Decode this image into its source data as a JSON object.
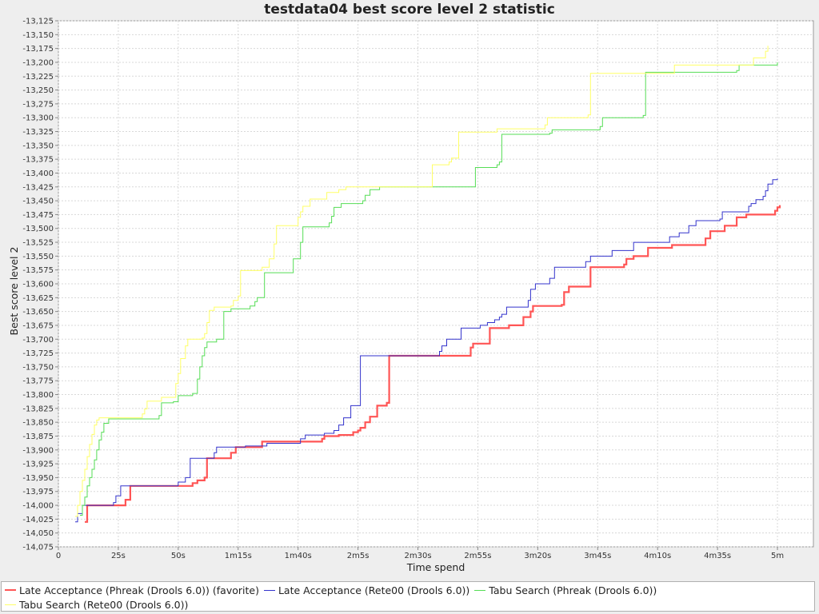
{
  "chart_data": {
    "type": "line",
    "title": "testdata04 best score level 2 statistic",
    "xlabel": "Time spend",
    "ylabel": "Best score level 2",
    "xlim": [
      0,
      315
    ],
    "ylim": [
      -14075,
      -13125
    ],
    "x_ticks": [
      {
        "value": 0,
        "label": "0"
      },
      {
        "value": 25,
        "label": "25s"
      },
      {
        "value": 50,
        "label": "50s"
      },
      {
        "value": 75,
        "label": "1m15s"
      },
      {
        "value": 100,
        "label": "1m40s"
      },
      {
        "value": 125,
        "label": "2m5s"
      },
      {
        "value": 150,
        "label": "2m30s"
      },
      {
        "value": 175,
        "label": "2m55s"
      },
      {
        "value": 200,
        "label": "3m20s"
      },
      {
        "value": 225,
        "label": "3m45s"
      },
      {
        "value": 250,
        "label": "4m10s"
      },
      {
        "value": 275,
        "label": "4m35s"
      },
      {
        "value": 300,
        "label": "5m"
      }
    ],
    "y_ticks": [
      -13125,
      -13150,
      -13175,
      -13200,
      -13225,
      -13250,
      -13275,
      -13300,
      -13325,
      -13350,
      -13375,
      -13400,
      -13425,
      -13450,
      -13475,
      -13500,
      -13525,
      -13550,
      -13575,
      -13600,
      -13625,
      -13650,
      -13675,
      -13700,
      -13725,
      -13750,
      -13775,
      -13800,
      -13825,
      -13850,
      -13875,
      -13900,
      -13925,
      -13950,
      -13975,
      -14000,
      -14025,
      -14050,
      -14075
    ],
    "y_tick_labels": [
      "-13,125",
      "-13,150",
      "-13,175",
      "-13,200",
      "-13,225",
      "-13,250",
      "-13,275",
      "-13,300",
      "-13,325",
      "-13,350",
      "-13,375",
      "-13,400",
      "-13,425",
      "-13,450",
      "-13,475",
      "-13,500",
      "-13,525",
      "-13,550",
      "-13,575",
      "-13,600",
      "-13,625",
      "-13,650",
      "-13,675",
      "-13,700",
      "-13,725",
      "-13,750",
      "-13,775",
      "-13,800",
      "-13,825",
      "-13,850",
      "-13,875",
      "-13,900",
      "-13,925",
      "-13,950",
      "-13,975",
      "-14,000",
      "-14,025",
      "-14,050",
      "-14,075"
    ],
    "grid": true,
    "legend_position": "bottom",
    "series": [
      {
        "name": "Late Acceptance (Phreak (Drools 6.0)) (favorite)",
        "color": "#ff5555",
        "bold": true,
        "step": true,
        "points": [
          [
            11,
            -14030
          ],
          [
            12,
            -14000
          ],
          [
            28,
            -13990
          ],
          [
            30,
            -13980
          ],
          [
            30,
            -13965
          ],
          [
            56,
            -13960
          ],
          [
            58,
            -13955
          ],
          [
            61,
            -13950
          ],
          [
            62,
            -13915
          ],
          [
            72,
            -13915
          ],
          [
            72,
            -13905
          ],
          [
            74,
            -13895
          ],
          [
            85,
            -13885
          ],
          [
            110,
            -13880
          ],
          [
            111,
            -13875
          ],
          [
            117,
            -13873
          ],
          [
            123,
            -13868
          ],
          [
            125,
            -13865
          ],
          [
            126,
            -13860
          ],
          [
            128,
            -13850
          ],
          [
            130,
            -13840
          ],
          [
            133,
            -13820
          ],
          [
            137,
            -13815
          ],
          [
            138,
            -13730
          ],
          [
            172,
            -13730
          ],
          [
            172,
            -13715
          ],
          [
            173,
            -13708
          ],
          [
            180,
            -13708
          ],
          [
            180,
            -13680
          ],
          [
            188,
            -13675
          ],
          [
            194,
            -13660
          ],
          [
            197,
            -13650
          ],
          [
            198,
            -13640
          ],
          [
            210,
            -13638
          ],
          [
            211,
            -13615
          ],
          [
            213,
            -13605
          ],
          [
            222,
            -13600
          ],
          [
            222,
            -13580
          ],
          [
            222,
            -13570
          ],
          [
            236,
            -13565
          ],
          [
            237,
            -13555
          ],
          [
            240,
            -13550
          ],
          [
            246,
            -13545
          ],
          [
            246,
            -13535
          ],
          [
            256,
            -13530
          ],
          [
            270,
            -13518
          ],
          [
            272,
            -13505
          ],
          [
            278,
            -13495
          ],
          [
            283,
            -13480
          ],
          [
            287,
            -13475
          ],
          [
            299,
            -13468
          ],
          [
            300,
            -13462
          ],
          [
            301,
            -13458
          ]
        ]
      },
      {
        "name": "Late Acceptance (Rete00 (Drools 6.0))",
        "color": "#3333cc",
        "bold": false,
        "step": true,
        "points": [
          [
            7,
            -14030
          ],
          [
            8,
            -14015
          ],
          [
            10,
            -14000
          ],
          [
            23,
            -13995
          ],
          [
            24,
            -13983
          ],
          [
            26,
            -13965
          ],
          [
            50,
            -13958
          ],
          [
            53,
            -13950
          ],
          [
            55,
            -13915
          ],
          [
            65,
            -13905
          ],
          [
            66,
            -13895
          ],
          [
            78,
            -13893
          ],
          [
            87,
            -13888
          ],
          [
            101,
            -13880
          ],
          [
            103,
            -13873
          ],
          [
            111,
            -13870
          ],
          [
            115,
            -13865
          ],
          [
            117,
            -13855
          ],
          [
            119,
            -13842
          ],
          [
            122,
            -13820
          ],
          [
            126,
            -13730
          ],
          [
            137,
            -13730
          ],
          [
            159,
            -13722
          ],
          [
            160,
            -13712
          ],
          [
            162,
            -13700
          ],
          [
            168,
            -13680
          ],
          [
            176,
            -13675
          ],
          [
            179,
            -13670
          ],
          [
            182,
            -13665
          ],
          [
            184,
            -13660
          ],
          [
            185,
            -13655
          ],
          [
            187,
            -13642
          ],
          [
            196,
            -13630
          ],
          [
            197,
            -13610
          ],
          [
            199,
            -13600
          ],
          [
            205,
            -13590
          ],
          [
            207,
            -13570
          ],
          [
            220,
            -13560
          ],
          [
            222,
            -13550
          ],
          [
            231,
            -13540
          ],
          [
            240,
            -13525
          ],
          [
            255,
            -13515
          ],
          [
            259,
            -13508
          ],
          [
            263,
            -13495
          ],
          [
            266,
            -13486
          ],
          [
            276,
            -13483
          ],
          [
            277,
            -13470
          ],
          [
            288,
            -13460
          ],
          [
            289,
            -13455
          ],
          [
            291,
            -13448
          ],
          [
            294,
            -13442
          ],
          [
            295,
            -13432
          ],
          [
            296,
            -13420
          ],
          [
            298,
            -13412
          ],
          [
            300,
            -13410
          ]
        ]
      },
      {
        "name": "Tabu Search (Phreak (Drools 6.0))",
        "color": "#55dd55",
        "bold": false,
        "step": true,
        "points": [
          [
            9,
            -14018
          ],
          [
            10,
            -14000
          ],
          [
            11,
            -13985
          ],
          [
            12,
            -13965
          ],
          [
            13,
            -13950
          ],
          [
            14,
            -13935
          ],
          [
            15,
            -13918
          ],
          [
            16,
            -13900
          ],
          [
            17,
            -13882
          ],
          [
            18,
            -13868
          ],
          [
            19,
            -13852
          ],
          [
            21,
            -13844
          ],
          [
            42,
            -13838
          ],
          [
            43,
            -13828
          ],
          [
            43,
            -13815
          ],
          [
            48,
            -13813
          ],
          [
            50,
            -13802
          ],
          [
            56,
            -13798
          ],
          [
            58,
            -13772
          ],
          [
            59,
            -13750
          ],
          [
            60,
            -13730
          ],
          [
            61,
            -13715
          ],
          [
            62,
            -13705
          ],
          [
            66,
            -13700
          ],
          [
            69,
            -13650
          ],
          [
            72,
            -13645
          ],
          [
            80,
            -13640
          ],
          [
            82,
            -13632
          ],
          [
            83,
            -13625
          ],
          [
            86,
            -13580
          ],
          [
            98,
            -13555
          ],
          [
            101,
            -13525
          ],
          [
            102,
            -13497
          ],
          [
            113,
            -13490
          ],
          [
            114,
            -13478
          ],
          [
            115,
            -13462
          ],
          [
            118,
            -13455
          ],
          [
            127,
            -13450
          ],
          [
            128,
            -13440
          ],
          [
            130,
            -13430
          ],
          [
            134,
            -13425
          ],
          [
            174,
            -13390
          ],
          [
            183,
            -13385
          ],
          [
            184,
            -13380
          ],
          [
            185,
            -13330
          ],
          [
            205,
            -13328
          ],
          [
            206,
            -13322
          ],
          [
            226,
            -13316
          ],
          [
            227,
            -13300
          ],
          [
            244,
            -13296
          ],
          [
            245,
            -13218
          ],
          [
            283,
            -13215
          ],
          [
            284,
            -13205
          ],
          [
            300,
            -13200
          ]
        ]
      },
      {
        "name": "Tabu Search (Rete00 (Drools 6.0))",
        "color": "#ffff66",
        "bold": false,
        "step": true,
        "points": [
          [
            7,
            -14020
          ],
          [
            8,
            -14000
          ],
          [
            9,
            -13975
          ],
          [
            10,
            -13955
          ],
          [
            11,
            -13935
          ],
          [
            12,
            -13912
          ],
          [
            13,
            -13890
          ],
          [
            14,
            -13872
          ],
          [
            15,
            -13855
          ],
          [
            16,
            -13846
          ],
          [
            17,
            -13842
          ],
          [
            35,
            -13835
          ],
          [
            36,
            -13826
          ],
          [
            37,
            -13812
          ],
          [
            43,
            -13805
          ],
          [
            49,
            -13803
          ],
          [
            49,
            -13780
          ],
          [
            50,
            -13762
          ],
          [
            51,
            -13735
          ],
          [
            53,
            -13712
          ],
          [
            54,
            -13700
          ],
          [
            60,
            -13698
          ],
          [
            61,
            -13690
          ],
          [
            62,
            -13670
          ],
          [
            63,
            -13648
          ],
          [
            65,
            -13642
          ],
          [
            72,
            -13640
          ],
          [
            73,
            -13630
          ],
          [
            75,
            -13622
          ],
          [
            76,
            -13576
          ],
          [
            85,
            -13570
          ],
          [
            88,
            -13555
          ],
          [
            90,
            -13528
          ],
          [
            91,
            -13495
          ],
          [
            100,
            -13480
          ],
          [
            101,
            -13470
          ],
          [
            102,
            -13460
          ],
          [
            105,
            -13447
          ],
          [
            112,
            -13435
          ],
          [
            117,
            -13430
          ],
          [
            120,
            -13425
          ],
          [
            156,
            -13385
          ],
          [
            163,
            -13380
          ],
          [
            164,
            -13373
          ],
          [
            167,
            -13326
          ],
          [
            183,
            -13320
          ],
          [
            203,
            -13313
          ],
          [
            204,
            -13300
          ],
          [
            221,
            -13295
          ],
          [
            222,
            -13220
          ],
          [
            257,
            -13205
          ],
          [
            290,
            -13192
          ],
          [
            295,
            -13180
          ],
          [
            296,
            -13170
          ]
        ]
      }
    ]
  }
}
